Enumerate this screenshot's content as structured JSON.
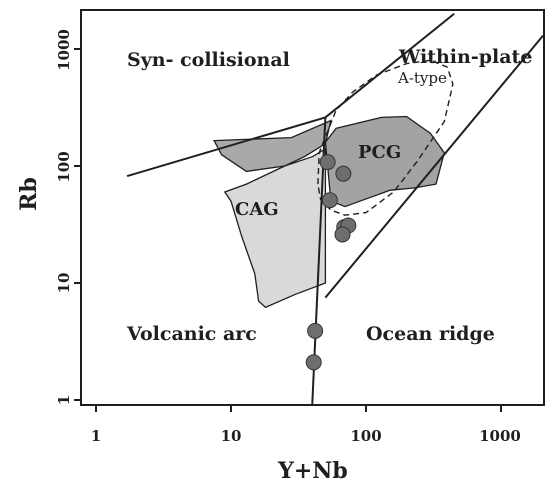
{
  "chart_data": {
    "type": "scatter",
    "title": "",
    "xlabel": "Y+Nb",
    "ylabel": "Rb",
    "x_scale": "log",
    "y_scale": "log",
    "xlim": [
      0.85,
      2800
    ],
    "ylim": [
      0.85,
      2000
    ],
    "x_ticks": [
      "1",
      "10",
      "100",
      "1000"
    ],
    "y_ticks": [
      "1",
      "10",
      "100",
      "1000"
    ],
    "grid": false,
    "field_labels": {
      "syn_collisional": "Syn- collisional",
      "within_plate": "Within-plate",
      "volcanic_arc": "Volcanic arc",
      "ocean_ridge": "Ocean ridge",
      "a_type": "A-type"
    },
    "boundaries": [
      [
        [
          1.7,
          82
        ],
        [
          50,
          260
        ]
      ],
      [
        [
          50,
          260
        ],
        [
          40,
          0.9
        ]
      ],
      [
        [
          50,
          260
        ],
        [
          450,
          2000
        ]
      ],
      [
        [
          50,
          7.5
        ],
        [
          2700,
          1300
        ]
      ]
    ],
    "a_type_field": [
      [
        44,
        70
      ],
      [
        45,
        130
      ],
      [
        60,
        300
      ],
      [
        80,
        430
      ],
      [
        120,
        600
      ],
      [
        200,
        750
      ],
      [
        300,
        800
      ],
      [
        400,
        700
      ],
      [
        440,
        500
      ],
      [
        380,
        240
      ],
      [
        240,
        110
      ],
      [
        160,
        60
      ],
      [
        100,
        40
      ],
      [
        70,
        38
      ],
      [
        55,
        42
      ],
      [
        46,
        52
      ]
    ],
    "series": [
      {
        "name": "CAG",
        "kind": "polygon",
        "color": "#d9d9d9",
        "points": [
          [
            13,
            70
          ],
          [
            25,
            100
          ],
          [
            40,
            120
          ],
          [
            50,
            140
          ],
          [
            50,
            10
          ],
          [
            30,
            8
          ],
          [
            18,
            6.2
          ],
          [
            16,
            7
          ],
          [
            15,
            12
          ],
          [
            12,
            25
          ],
          [
            10,
            50
          ],
          [
            9,
            60
          ]
        ]
      },
      {
        "name": "PCG",
        "kind": "polygon",
        "color": "#a3a3a3",
        "points": [
          [
            50,
            160
          ],
          [
            60,
            210
          ],
          [
            130,
            260
          ],
          [
            200,
            265
          ],
          [
            300,
            190
          ],
          [
            380,
            130
          ],
          [
            330,
            70
          ],
          [
            230,
            65
          ],
          [
            150,
            62
          ],
          [
            90,
            50
          ],
          [
            70,
            45
          ],
          [
            55,
            50
          ]
        ]
      },
      {
        "name": "",
        "kind": "polygon",
        "color": "#a9a9a9",
        "points": [
          [
            7.5,
            165
          ],
          [
            28,
            175
          ],
          [
            55,
            245
          ],
          [
            50,
            155
          ],
          [
            35,
            120
          ],
          [
            25,
            100
          ],
          [
            13,
            90
          ],
          [
            8.5,
            125
          ]
        ]
      },
      {
        "name": "",
        "kind": "points",
        "color": "#6e6e6e",
        "points": [
          [
            52,
            108
          ],
          [
            68,
            86
          ],
          [
            54,
            51
          ],
          [
            69,
            30
          ],
          [
            74,
            31
          ],
          [
            67,
            26
          ],
          [
            42,
            3.9
          ],
          [
            41,
            2.1
          ]
        ]
      }
    ]
  }
}
